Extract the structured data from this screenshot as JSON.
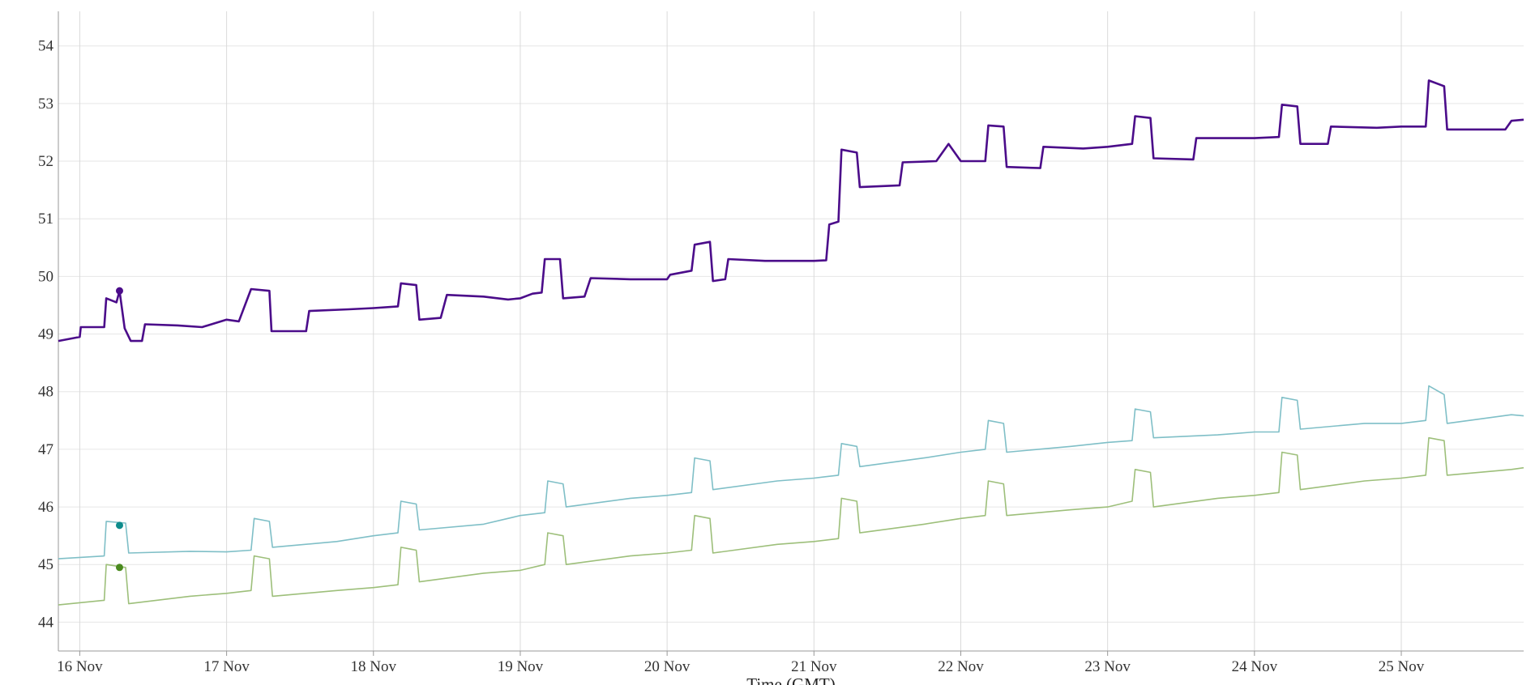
{
  "chart_data": {
    "type": "line",
    "title": "",
    "xlabel": "Time (GMT)",
    "ylabel": "",
    "ylim": [
      43.5,
      54.6
    ],
    "yticks": [
      44,
      45,
      46,
      47,
      48,
      49,
      50,
      51,
      52,
      53,
      54
    ],
    "xlim": [
      "2023-11-15T20:30",
      "2023-11-25T20:00"
    ],
    "xticks": [
      {
        "label": "16 Nov",
        "date": "2023-11-16T00:00"
      },
      {
        "label": "17 Nov",
        "date": "2023-11-17T00:00"
      },
      {
        "label": "18 Nov",
        "date": "2023-11-18T00:00"
      },
      {
        "label": "19 Nov",
        "date": "2023-11-19T00:00"
      },
      {
        "label": "20 Nov",
        "date": "2023-11-20T00:00"
      },
      {
        "label": "21 Nov",
        "date": "2023-11-21T00:00"
      },
      {
        "label": "22 Nov",
        "date": "2023-11-22T00:00"
      },
      {
        "label": "23 Nov",
        "date": "2023-11-23T00:00"
      },
      {
        "label": "24 Nov",
        "date": "2023-11-24T00:00"
      },
      {
        "label": "25 Nov",
        "date": "2023-11-25T00:00"
      }
    ],
    "grid": {
      "x": true,
      "y": true
    },
    "legend": "none",
    "series": [
      {
        "color": "#4b0c8a",
        "width": 2.6,
        "marker": {
          "x": "2023-11-16T06:30",
          "y": 49.75
        },
        "points": [
          [
            "2023-11-15T20:30",
            48.88
          ],
          [
            "2023-11-16T00:00",
            48.95
          ],
          [
            "2023-11-16T00:10",
            49.12
          ],
          [
            "2023-11-16T04:00",
            49.12
          ],
          [
            "2023-11-16T04:20",
            49.62
          ],
          [
            "2023-11-16T06:00",
            49.55
          ],
          [
            "2023-11-16T06:30",
            49.75
          ],
          [
            "2023-11-16T07:20",
            49.1
          ],
          [
            "2023-11-16T08:20",
            48.88
          ],
          [
            "2023-11-16T10:10",
            48.88
          ],
          [
            "2023-11-16T10:40",
            49.17
          ],
          [
            "2023-11-16T16:00",
            49.15
          ],
          [
            "2023-11-16T20:00",
            49.12
          ],
          [
            "2023-11-17T00:00",
            49.25
          ],
          [
            "2023-11-17T02:00",
            49.22
          ],
          [
            "2023-11-17T04:00",
            49.78
          ],
          [
            "2023-11-17T07:00",
            49.75
          ],
          [
            "2023-11-17T07:20",
            49.05
          ],
          [
            "2023-11-17T13:00",
            49.05
          ],
          [
            "2023-11-17T13:30",
            49.4
          ],
          [
            "2023-11-17T20:00",
            49.43
          ],
          [
            "2023-11-18T00:00",
            49.45
          ],
          [
            "2023-11-18T04:00",
            49.48
          ],
          [
            "2023-11-18T04:30",
            49.88
          ],
          [
            "2023-11-18T07:00",
            49.85
          ],
          [
            "2023-11-18T07:30",
            49.25
          ],
          [
            "2023-11-18T11:00",
            49.28
          ],
          [
            "2023-11-18T12:00",
            49.68
          ],
          [
            "2023-11-18T18:00",
            49.65
          ],
          [
            "2023-11-18T22:00",
            49.6
          ],
          [
            "2023-11-19T00:00",
            49.62
          ],
          [
            "2023-11-19T02:00",
            49.7
          ],
          [
            "2023-11-19T03:30",
            49.72
          ],
          [
            "2023-11-19T04:00",
            50.3
          ],
          [
            "2023-11-19T06:30",
            50.3
          ],
          [
            "2023-11-19T07:00",
            49.62
          ],
          [
            "2023-11-19T10:30",
            49.65
          ],
          [
            "2023-11-19T11:30",
            49.97
          ],
          [
            "2023-11-19T18:00",
            49.95
          ],
          [
            "2023-11-20T00:00",
            49.95
          ],
          [
            "2023-11-20T00:30",
            50.03
          ],
          [
            "2023-11-20T04:00",
            50.1
          ],
          [
            "2023-11-20T04:30",
            50.55
          ],
          [
            "2023-11-20T07:00",
            50.6
          ],
          [
            "2023-11-20T07:30",
            49.92
          ],
          [
            "2023-11-20T09:30",
            49.95
          ],
          [
            "2023-11-20T10:00",
            50.3
          ],
          [
            "2023-11-20T16:00",
            50.27
          ],
          [
            "2023-11-21T00:00",
            50.27
          ],
          [
            "2023-11-21T02:00",
            50.28
          ],
          [
            "2023-11-21T02:30",
            50.9
          ],
          [
            "2023-11-21T04:00",
            50.95
          ],
          [
            "2023-11-21T04:30",
            52.2
          ],
          [
            "2023-11-21T07:00",
            52.15
          ],
          [
            "2023-11-21T07:30",
            51.55
          ],
          [
            "2023-11-21T14:00",
            51.58
          ],
          [
            "2023-11-21T14:30",
            51.98
          ],
          [
            "2023-11-21T20:00",
            52.0
          ],
          [
            "2023-11-21T22:00",
            52.3
          ],
          [
            "2023-11-22T00:00",
            52.0
          ],
          [
            "2023-11-22T04:00",
            52.0
          ],
          [
            "2023-11-22T04:30",
            52.62
          ],
          [
            "2023-11-22T07:00",
            52.6
          ],
          [
            "2023-11-22T07:30",
            51.9
          ],
          [
            "2023-11-22T13:00",
            51.88
          ],
          [
            "2023-11-22T13:30",
            52.25
          ],
          [
            "2023-11-22T20:00",
            52.22
          ],
          [
            "2023-11-23T00:00",
            52.25
          ],
          [
            "2023-11-23T04:00",
            52.3
          ],
          [
            "2023-11-23T04:30",
            52.78
          ],
          [
            "2023-11-23T07:00",
            52.75
          ],
          [
            "2023-11-23T07:30",
            52.05
          ],
          [
            "2023-11-23T14:00",
            52.03
          ],
          [
            "2023-11-23T14:30",
            52.4
          ],
          [
            "2023-11-23T20:00",
            52.4
          ],
          [
            "2023-11-24T00:00",
            52.4
          ],
          [
            "2023-11-24T04:00",
            52.42
          ],
          [
            "2023-11-24T04:30",
            52.98
          ],
          [
            "2023-11-24T07:00",
            52.95
          ],
          [
            "2023-11-24T07:30",
            52.3
          ],
          [
            "2023-11-24T12:00",
            52.3
          ],
          [
            "2023-11-24T12:30",
            52.6
          ],
          [
            "2023-11-24T20:00",
            52.58
          ],
          [
            "2023-11-25T00:00",
            52.6
          ],
          [
            "2023-11-25T04:00",
            52.6
          ],
          [
            "2023-11-25T04:30",
            53.4
          ],
          [
            "2023-11-25T07:00",
            53.3
          ],
          [
            "2023-11-25T07:30",
            52.55
          ],
          [
            "2023-11-25T17:00",
            52.55
          ],
          [
            "2023-11-25T18:00",
            52.7
          ],
          [
            "2023-11-25T20:00",
            52.72
          ]
        ]
      },
      {
        "color": "#7fbfc7",
        "width": 1.6,
        "marker": {
          "x": "2023-11-16T06:30",
          "y": 45.68
        },
        "points": [
          [
            "2023-11-15T20:30",
            45.1
          ],
          [
            "2023-11-16T04:00",
            45.15
          ],
          [
            "2023-11-16T04:20",
            45.75
          ],
          [
            "2023-11-16T07:30",
            45.72
          ],
          [
            "2023-11-16T08:00",
            45.2
          ],
          [
            "2023-11-16T18:00",
            45.23
          ],
          [
            "2023-11-17T00:00",
            45.22
          ],
          [
            "2023-11-17T04:00",
            45.25
          ],
          [
            "2023-11-17T04:30",
            45.8
          ],
          [
            "2023-11-17T07:00",
            45.75
          ],
          [
            "2023-11-17T07:30",
            45.3
          ],
          [
            "2023-11-17T18:00",
            45.4
          ],
          [
            "2023-11-18T00:00",
            45.5
          ],
          [
            "2023-11-18T04:00",
            45.55
          ],
          [
            "2023-11-18T04:30",
            46.1
          ],
          [
            "2023-11-18T07:00",
            46.05
          ],
          [
            "2023-11-18T07:30",
            45.6
          ],
          [
            "2023-11-18T18:00",
            45.7
          ],
          [
            "2023-11-19T00:00",
            45.85
          ],
          [
            "2023-11-19T04:00",
            45.9
          ],
          [
            "2023-11-19T04:30",
            46.45
          ],
          [
            "2023-11-19T07:00",
            46.4
          ],
          [
            "2023-11-19T07:30",
            46.0
          ],
          [
            "2023-11-19T18:00",
            46.15
          ],
          [
            "2023-11-20T00:00",
            46.2
          ],
          [
            "2023-11-20T04:00",
            46.25
          ],
          [
            "2023-11-20T04:30",
            46.85
          ],
          [
            "2023-11-20T07:00",
            46.8
          ],
          [
            "2023-11-20T07:30",
            46.3
          ],
          [
            "2023-11-20T18:00",
            46.45
          ],
          [
            "2023-11-21T00:00",
            46.5
          ],
          [
            "2023-11-21T04:00",
            46.55
          ],
          [
            "2023-11-21T04:30",
            47.1
          ],
          [
            "2023-11-21T07:00",
            47.05
          ],
          [
            "2023-11-21T07:30",
            46.7
          ],
          [
            "2023-11-21T18:00",
            46.85
          ],
          [
            "2023-11-22T00:00",
            46.95
          ],
          [
            "2023-11-22T04:00",
            47.0
          ],
          [
            "2023-11-22T04:30",
            47.5
          ],
          [
            "2023-11-22T07:00",
            47.45
          ],
          [
            "2023-11-22T07:30",
            46.95
          ],
          [
            "2023-11-22T18:00",
            47.05
          ],
          [
            "2023-11-23T00:00",
            47.12
          ],
          [
            "2023-11-23T04:00",
            47.15
          ],
          [
            "2023-11-23T04:30",
            47.7
          ],
          [
            "2023-11-23T07:00",
            47.65
          ],
          [
            "2023-11-23T07:30",
            47.2
          ],
          [
            "2023-11-23T18:00",
            47.25
          ],
          [
            "2023-11-24T00:00",
            47.3
          ],
          [
            "2023-11-24T04:00",
            47.3
          ],
          [
            "2023-11-24T04:30",
            47.9
          ],
          [
            "2023-11-24T07:00",
            47.85
          ],
          [
            "2023-11-24T07:30",
            47.35
          ],
          [
            "2023-11-24T18:00",
            47.45
          ],
          [
            "2023-11-25T00:00",
            47.45
          ],
          [
            "2023-11-25T04:00",
            47.5
          ],
          [
            "2023-11-25T04:30",
            48.1
          ],
          [
            "2023-11-25T07:00",
            47.95
          ],
          [
            "2023-11-25T07:30",
            47.45
          ],
          [
            "2023-11-25T18:00",
            47.6
          ],
          [
            "2023-11-25T20:00",
            47.58
          ]
        ]
      },
      {
        "color": "#9dbf7a",
        "width": 1.6,
        "marker": {
          "x": "2023-11-16T06:30",
          "y": 44.95
        },
        "points": [
          [
            "2023-11-15T20:30",
            44.3
          ],
          [
            "2023-11-16T04:00",
            44.38
          ],
          [
            "2023-11-16T04:20",
            45.0
          ],
          [
            "2023-11-16T07:30",
            44.95
          ],
          [
            "2023-11-16T08:00",
            44.32
          ],
          [
            "2023-11-16T18:00",
            44.45
          ],
          [
            "2023-11-17T00:00",
            44.5
          ],
          [
            "2023-11-17T04:00",
            44.55
          ],
          [
            "2023-11-17T04:30",
            45.15
          ],
          [
            "2023-11-17T07:00",
            45.1
          ],
          [
            "2023-11-17T07:30",
            44.45
          ],
          [
            "2023-11-17T18:00",
            44.55
          ],
          [
            "2023-11-18T00:00",
            44.6
          ],
          [
            "2023-11-18T04:00",
            44.65
          ],
          [
            "2023-11-18T04:30",
            45.3
          ],
          [
            "2023-11-18T07:00",
            45.25
          ],
          [
            "2023-11-18T07:30",
            44.7
          ],
          [
            "2023-11-18T18:00",
            44.85
          ],
          [
            "2023-11-19T00:00",
            44.9
          ],
          [
            "2023-11-19T04:00",
            45.0
          ],
          [
            "2023-11-19T04:30",
            45.55
          ],
          [
            "2023-11-19T07:00",
            45.5
          ],
          [
            "2023-11-19T07:30",
            45.0
          ],
          [
            "2023-11-19T18:00",
            45.15
          ],
          [
            "2023-11-20T00:00",
            45.2
          ],
          [
            "2023-11-20T04:00",
            45.25
          ],
          [
            "2023-11-20T04:30",
            45.85
          ],
          [
            "2023-11-20T07:00",
            45.8
          ],
          [
            "2023-11-20T07:30",
            45.2
          ],
          [
            "2023-11-20T18:00",
            45.35
          ],
          [
            "2023-11-21T00:00",
            45.4
          ],
          [
            "2023-11-21T04:00",
            45.45
          ],
          [
            "2023-11-21T04:30",
            46.15
          ],
          [
            "2023-11-21T07:00",
            46.1
          ],
          [
            "2023-11-21T07:30",
            45.55
          ],
          [
            "2023-11-21T18:00",
            45.7
          ],
          [
            "2023-11-22T00:00",
            45.8
          ],
          [
            "2023-11-22T04:00",
            45.85
          ],
          [
            "2023-11-22T04:30",
            46.45
          ],
          [
            "2023-11-22T07:00",
            46.4
          ],
          [
            "2023-11-22T07:30",
            45.85
          ],
          [
            "2023-11-22T18:00",
            45.95
          ],
          [
            "2023-11-23T00:00",
            46.0
          ],
          [
            "2023-11-23T04:00",
            46.1
          ],
          [
            "2023-11-23T04:30",
            46.65
          ],
          [
            "2023-11-23T07:00",
            46.6
          ],
          [
            "2023-11-23T07:30",
            46.0
          ],
          [
            "2023-11-23T18:00",
            46.15
          ],
          [
            "2023-11-24T00:00",
            46.2
          ],
          [
            "2023-11-24T04:00",
            46.25
          ],
          [
            "2023-11-24T04:30",
            46.95
          ],
          [
            "2023-11-24T07:00",
            46.9
          ],
          [
            "2023-11-24T07:30",
            46.3
          ],
          [
            "2023-11-24T18:00",
            46.45
          ],
          [
            "2023-11-25T00:00",
            46.5
          ],
          [
            "2023-11-25T04:00",
            46.55
          ],
          [
            "2023-11-25T04:30",
            47.2
          ],
          [
            "2023-11-25T07:00",
            47.15
          ],
          [
            "2023-11-25T07:30",
            46.55
          ],
          [
            "2023-11-25T18:00",
            46.65
          ],
          [
            "2023-11-25T20:00",
            46.68
          ]
        ]
      }
    ]
  }
}
